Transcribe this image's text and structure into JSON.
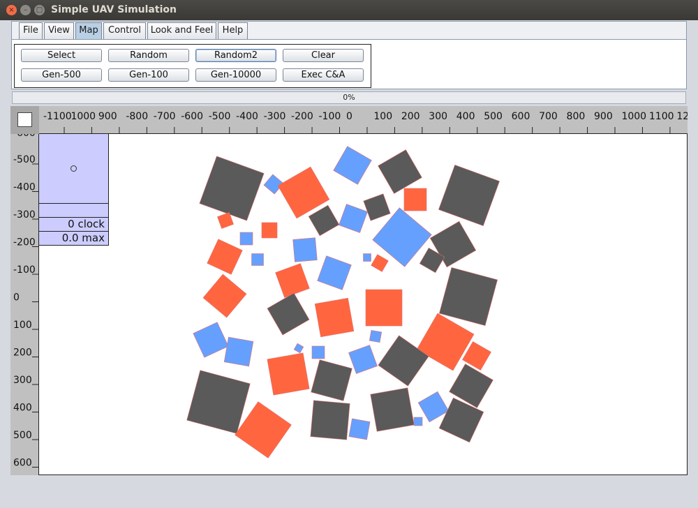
{
  "window": {
    "title": "Simple UAV Simulation",
    "close_glyph": "×",
    "min_glyph": "–",
    "max_glyph": "□"
  },
  "menu": {
    "tabs": [
      {
        "label": "File"
      },
      {
        "label": "View"
      },
      {
        "label": "Map"
      },
      {
        "label": "Control"
      },
      {
        "label": "Look and Feel"
      },
      {
        "label": "Help"
      }
    ],
    "active_tab": "Map"
  },
  "toolbar": {
    "buttons": [
      {
        "label": "Select"
      },
      {
        "label": "Random"
      },
      {
        "label": "Random2"
      },
      {
        "label": "Clear"
      },
      {
        "label": "Gen-500"
      },
      {
        "label": "Gen-100"
      },
      {
        "label": "Gen-10000"
      },
      {
        "label": "Exec C&A"
      }
    ]
  },
  "progress": {
    "text": "0%",
    "value": 0
  },
  "map": {
    "ruler_x_labels": [
      "-1100",
      "1000",
      "900",
      "-800",
      "-700",
      "-600",
      "-500",
      "-400",
      "-300",
      "-200",
      "-100",
      "0",
      "100",
      "200",
      "300",
      "400",
      "500",
      "600",
      "700",
      "800",
      "900",
      "1000",
      "1100",
      "12"
    ],
    "ruler_y_labels": [
      "-500",
      "-400",
      "-300",
      "-200",
      "-100",
      "0",
      "100",
      "200",
      "300",
      "400",
      "500",
      "600"
    ],
    "info": {
      "clock": "0 clock",
      "max": "0.0 max"
    },
    "colors": {
      "dark": "#5a5a5a",
      "orange": "#ff6640",
      "blue": "#66a0ff",
      "panel": "#ccccff"
    }
  }
}
